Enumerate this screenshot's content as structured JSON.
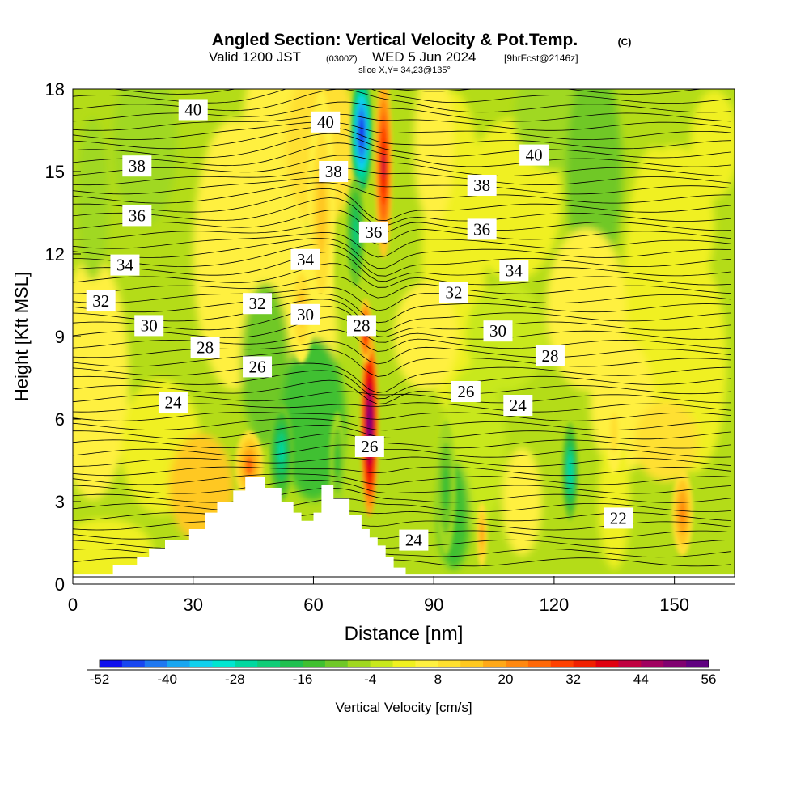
{
  "title": {
    "main": "Angled Section: Vertical Velocity & Pot.Temp.",
    "main_units": "(C)",
    "valid_prefix": "Valid 1200 JST",
    "valid_utc": "(0300Z)",
    "valid_date": "WED 5 Jun 2024",
    "forecast_tag": "[9hrFcst@2146z]",
    "slice": "slice X,Y= 34,23@135°"
  },
  "chart_data": {
    "type": "heatmap",
    "xlabel": "Distance [nm]",
    "ylabel": "Height [Kft MSL]",
    "xlim": [
      0,
      165
    ],
    "ylim": [
      0,
      18
    ],
    "xticks": [
      0,
      30,
      60,
      90,
      120,
      150
    ],
    "yticks": [
      0,
      3,
      6,
      9,
      12,
      15,
      18
    ],
    "grid": false,
    "colorbar": {
      "label": "Vertical Velocity [cm/s]",
      "placement": "bottom",
      "min": -52,
      "max": 56,
      "step": 4,
      "tick_labels": [
        "-52",
        "-40",
        "-28",
        "-16",
        "-4",
        "8",
        "20",
        "32",
        "44",
        "56"
      ],
      "colors": [
        "#1010ee",
        "#1846f0",
        "#1f78f0",
        "#19a6f0",
        "#10d0ee",
        "#00e6d0",
        "#00d8a0",
        "#10cc78",
        "#20c050",
        "#40c030",
        "#70c828",
        "#a0d820",
        "#c8e81c",
        "#f0f020",
        "#fff040",
        "#ffe030",
        "#ffc820",
        "#ffa818",
        "#ff8810",
        "#ff6808",
        "#ff4000",
        "#f02000",
        "#e00010",
        "#c00040",
        "#a00060",
        "#800070",
        "#600080"
      ]
    },
    "terrain": {
      "x": [
        0,
        10,
        10,
        16,
        16,
        19,
        19,
        23,
        23,
        29,
        29,
        33,
        33,
        36,
        36,
        40,
        40,
        43,
        43,
        48,
        48,
        52,
        52,
        55,
        55,
        57,
        57,
        60,
        60,
        62,
        62,
        65,
        65,
        69,
        69,
        72,
        72,
        74,
        74,
        76,
        76,
        78,
        78,
        80,
        80,
        83,
        83,
        85,
        85,
        165
      ],
      "y": [
        0.35,
        0.35,
        0.7,
        0.7,
        1.0,
        1.0,
        1.3,
        1.3,
        1.6,
        1.6,
        2.0,
        2.0,
        2.6,
        2.6,
        3.0,
        3.0,
        3.4,
        3.4,
        3.9,
        3.9,
        3.5,
        3.5,
        3.0,
        3.0,
        2.6,
        2.6,
        2.3,
        2.3,
        2.6,
        2.6,
        3.6,
        3.6,
        3.1,
        3.1,
        2.5,
        2.5,
        2.0,
        2.0,
        1.7,
        1.7,
        1.4,
        1.4,
        1.0,
        1.0,
        0.6,
        0.6,
        0.35,
        0.35,
        0.35,
        0.35
      ]
    },
    "series": [
      {
        "field": "vertical_velocity",
        "units": "cm/s",
        "features": [
          {
            "kind": "updraft",
            "x": 74,
            "y_range": [
              2.5,
              8.5
            ],
            "peak": 56
          },
          {
            "kind": "updraft",
            "x": 78,
            "y_range": [
              12,
              18
            ],
            "peak": 40
          },
          {
            "kind": "updraft",
            "x": 62,
            "y_range": [
              10,
              18
            ],
            "peak": 12
          },
          {
            "kind": "downdraft",
            "x": 71,
            "y_range": [
              13,
              18
            ],
            "peak": -52
          },
          {
            "kind": "downdraft",
            "x": 52,
            "y_range": [
              3.5,
              6.5
            ],
            "peak": -28
          },
          {
            "kind": "downdraft",
            "x": 124,
            "y_range": [
              2.5,
              5.5
            ],
            "peak": -28
          },
          {
            "kind": "updraft",
            "x": 44,
            "y_range": [
              3.5,
              5.5
            ],
            "peak": 24
          },
          {
            "kind": "updraft",
            "x": 152,
            "y_range": [
              1.5,
              4.0
            ],
            "peak": 20
          },
          {
            "kind": "updraft",
            "x": 102,
            "y_range": [
              1.0,
              3.0
            ],
            "peak": 16
          }
        ]
      },
      {
        "field": "potential_temperature",
        "units": "C",
        "contour_labels": [
          {
            "text": "40",
            "x": 30,
            "y": 17.25
          },
          {
            "text": "40",
            "x": 63,
            "y": 16.8
          },
          {
            "text": "40",
            "x": 115,
            "y": 15.6
          },
          {
            "text": "38",
            "x": 16,
            "y": 15.2
          },
          {
            "text": "38",
            "x": 65,
            "y": 15.0
          },
          {
            "text": "38",
            "x": 102,
            "y": 14.5
          },
          {
            "text": "36",
            "x": 16,
            "y": 13.4
          },
          {
            "text": "36",
            "x": 75,
            "y": 12.8
          },
          {
            "text": "36",
            "x": 102,
            "y": 12.9
          },
          {
            "text": "34",
            "x": 13,
            "y": 11.6
          },
          {
            "text": "34",
            "x": 58,
            "y": 11.8
          },
          {
            "text": "34",
            "x": 110,
            "y": 11.4
          },
          {
            "text": "32",
            "x": 7,
            "y": 10.3
          },
          {
            "text": "32",
            "x": 46,
            "y": 10.2
          },
          {
            "text": "32",
            "x": 95,
            "y": 10.6
          },
          {
            "text": "30",
            "x": 19,
            "y": 9.4
          },
          {
            "text": "30",
            "x": 58,
            "y": 9.8
          },
          {
            "text": "30",
            "x": 106,
            "y": 9.2
          },
          {
            "text": "28",
            "x": 33,
            "y": 8.6
          },
          {
            "text": "28",
            "x": 72,
            "y": 9.4
          },
          {
            "text": "28",
            "x": 119,
            "y": 8.3
          },
          {
            "text": "26",
            "x": 46,
            "y": 7.9
          },
          {
            "text": "26",
            "x": 98,
            "y": 7.0
          },
          {
            "text": "26",
            "x": 74,
            "y": 5.0
          },
          {
            "text": "24",
            "x": 25,
            "y": 6.6
          },
          {
            "text": "24",
            "x": 111,
            "y": 6.5
          },
          {
            "text": "24",
            "x": 85,
            "y": 1.6
          },
          {
            "text": "22",
            "x": 136,
            "y": 2.4
          }
        ]
      }
    ]
  }
}
